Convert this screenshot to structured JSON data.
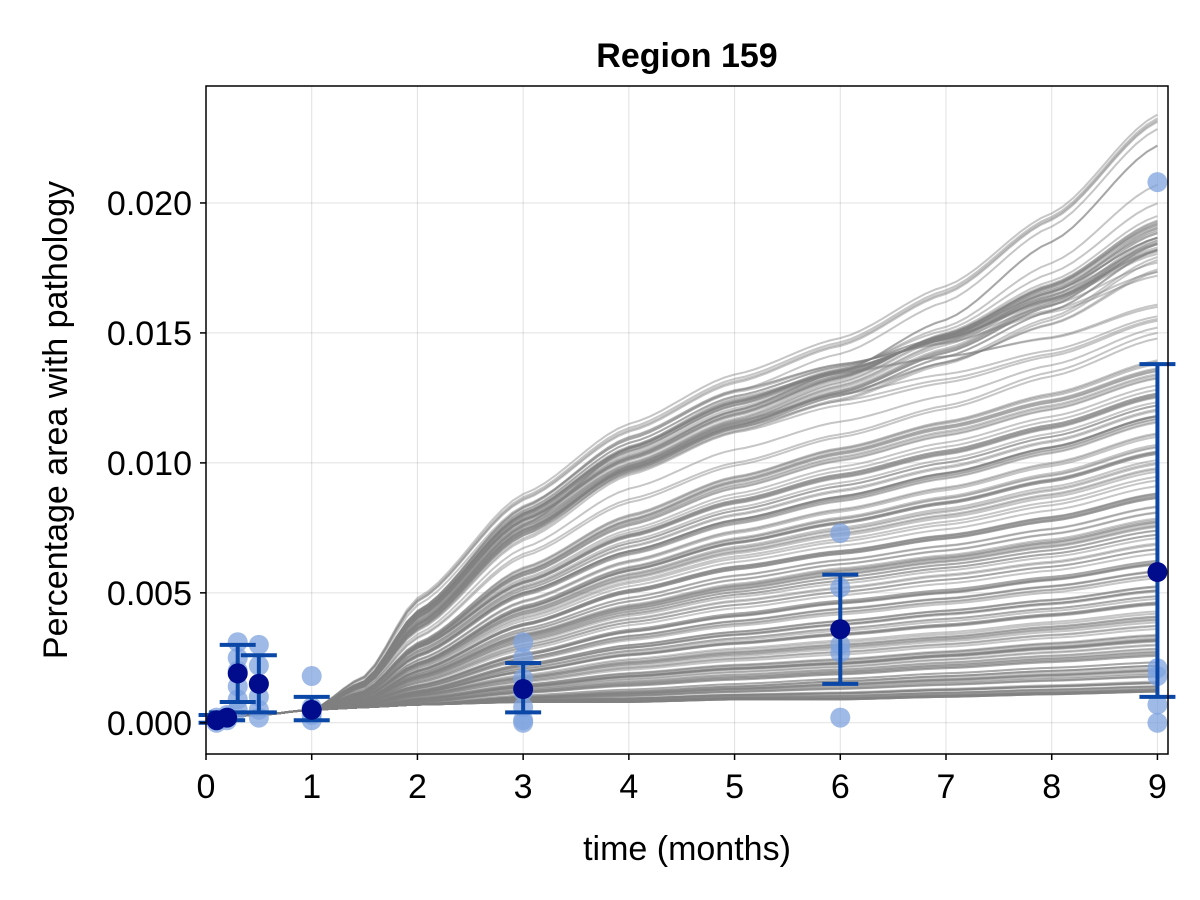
{
  "chart_data": {
    "type": "scatter",
    "title": "Region 159",
    "xlabel": "time (months)",
    "ylabel": "Percentage area with pathology",
    "xlim": [
      0,
      9.1
    ],
    "ylim": [
      -0.0012,
      0.0245
    ],
    "xticks": [
      0,
      1,
      2,
      3,
      4,
      5,
      6,
      7,
      8,
      9
    ],
    "xtick_labels": [
      "0",
      "1",
      "2",
      "3",
      "4",
      "5",
      "6",
      "7",
      "8",
      "9"
    ],
    "yticks": [
      0.0,
      0.005,
      0.01,
      0.015,
      0.02
    ],
    "ytick_labels": [
      "0.000",
      "0.005",
      "0.010",
      "0.015",
      "0.020"
    ],
    "grid": true,
    "colors": {
      "trajectories": "#808080",
      "observations": "#7fa3df",
      "means": "#000c8c",
      "error_bars": "#0a47a6"
    },
    "trajectories": {
      "description_count": 220,
      "curves": [
        {
          "t": [
            0,
            0.5,
            1,
            1.5,
            2,
            3,
            4,
            5,
            6,
            7,
            8,
            9
          ],
          "y": [
            0.0002,
            0.0003,
            0.0005,
            0.0018,
            0.0048,
            0.0088,
            0.0115,
            0.0134,
            0.0148,
            0.0168,
            0.0196,
            0.0234
          ]
        },
        {
          "t": [
            0,
            0.5,
            1,
            1.5,
            2,
            3,
            4,
            5,
            6,
            7,
            8,
            9
          ],
          "y": [
            0.0002,
            0.0003,
            0.0005,
            0.0016,
            0.0042,
            0.0078,
            0.0102,
            0.012,
            0.0135,
            0.0155,
            0.0185,
            0.0222
          ]
        },
        {
          "t": [
            0,
            0.5,
            1,
            1.5,
            2,
            3,
            4,
            5,
            6,
            7,
            8,
            9
          ],
          "y": [
            0.0002,
            0.0003,
            0.0005,
            0.0016,
            0.0043,
            0.0083,
            0.011,
            0.0128,
            0.0138,
            0.0146,
            0.0158,
            0.0172
          ]
        },
        {
          "t": [
            0,
            0.5,
            1,
            1.5,
            2,
            3,
            4,
            5,
            6,
            7,
            8,
            9
          ],
          "y": [
            0.0002,
            0.0003,
            0.0005,
            0.0015,
            0.004,
            0.0077,
            0.01,
            0.0117,
            0.0132,
            0.015,
            0.017,
            0.0195
          ]
        },
        {
          "t": [
            0,
            0.5,
            1,
            1.5,
            2,
            3,
            4,
            5,
            6,
            7,
            8,
            9
          ],
          "y": [
            0.0002,
            0.0003,
            0.0005,
            0.0014,
            0.0036,
            0.0072,
            0.0096,
            0.0112,
            0.0124,
            0.0138,
            0.0155,
            0.0178
          ]
        },
        {
          "t": [
            0,
            0.5,
            1,
            1.5,
            2,
            3,
            4,
            5,
            6,
            7,
            8,
            9
          ],
          "y": [
            0.0002,
            0.0003,
            0.0005,
            0.0015,
            0.0038,
            0.0076,
            0.0106,
            0.0125,
            0.0135,
            0.0141,
            0.0148,
            0.016
          ]
        },
        {
          "t": [
            0,
            0.5,
            1,
            1.5,
            2,
            3,
            4,
            5,
            6,
            7,
            8,
            9
          ],
          "y": [
            0.0002,
            0.0003,
            0.0005,
            0.0013,
            0.0033,
            0.0065,
            0.0086,
            0.01,
            0.0111,
            0.0122,
            0.0135,
            0.015
          ]
        },
        {
          "t": [
            0,
            0.5,
            1,
            1.5,
            2,
            3,
            4,
            5,
            6,
            7,
            8,
            9
          ],
          "y": [
            0.0002,
            0.0003,
            0.0005,
            0.0012,
            0.003,
            0.0058,
            0.0078,
            0.0093,
            0.0104,
            0.0114,
            0.0124,
            0.0136
          ]
        },
        {
          "t": [
            0,
            0.5,
            1,
            1.5,
            2,
            3,
            4,
            5,
            6,
            7,
            8,
            9
          ],
          "y": [
            0.0002,
            0.0003,
            0.0005,
            0.0012,
            0.0029,
            0.0054,
            0.0072,
            0.0085,
            0.0095,
            0.0104,
            0.0114,
            0.0126
          ]
        },
        {
          "t": [
            0,
            0.5,
            1,
            1.5,
            2,
            3,
            4,
            5,
            6,
            7,
            8,
            9
          ],
          "y": [
            0.0002,
            0.0003,
            0.0005,
            0.0011,
            0.0026,
            0.005,
            0.0066,
            0.0078,
            0.0087,
            0.0096,
            0.0106,
            0.0118
          ]
        },
        {
          "t": [
            0,
            0.5,
            1,
            1.5,
            2,
            3,
            4,
            5,
            6,
            7,
            8,
            9
          ],
          "y": [
            0.0002,
            0.0003,
            0.0005,
            0.001,
            0.0023,
            0.0045,
            0.006,
            0.0071,
            0.0079,
            0.0087,
            0.0096,
            0.0107
          ]
        },
        {
          "t": [
            0,
            0.5,
            1,
            1.5,
            2,
            3,
            4,
            5,
            6,
            7,
            8,
            9
          ],
          "y": [
            0.0002,
            0.0003,
            0.0005,
            0.001,
            0.0022,
            0.0042,
            0.0056,
            0.0066,
            0.0073,
            0.008,
            0.0088,
            0.0098
          ]
        },
        {
          "t": [
            0,
            0.5,
            1,
            1.5,
            2,
            3,
            4,
            5,
            6,
            7,
            8,
            9
          ],
          "y": [
            0.0002,
            0.0003,
            0.0005,
            0.0009,
            0.002,
            0.0038,
            0.0051,
            0.006,
            0.0066,
            0.0072,
            0.0079,
            0.0088
          ]
        },
        {
          "t": [
            0,
            0.5,
            1,
            1.5,
            2,
            3,
            4,
            5,
            6,
            7,
            8,
            9
          ],
          "y": [
            0.0002,
            0.0003,
            0.0005,
            0.0009,
            0.0018,
            0.0034,
            0.0045,
            0.0053,
            0.0059,
            0.0064,
            0.007,
            0.0078
          ]
        },
        {
          "t": [
            0,
            0.5,
            1,
            1.5,
            2,
            3,
            4,
            5,
            6,
            7,
            8,
            9
          ],
          "y": [
            0.0002,
            0.0003,
            0.0005,
            0.0008,
            0.0016,
            0.003,
            0.004,
            0.0047,
            0.0052,
            0.0057,
            0.0062,
            0.0069
          ]
        },
        {
          "t": [
            0,
            0.5,
            1,
            1.5,
            2,
            3,
            4,
            5,
            6,
            7,
            8,
            9
          ],
          "y": [
            0.0002,
            0.0003,
            0.0005,
            0.0008,
            0.0014,
            0.0026,
            0.0035,
            0.0041,
            0.0046,
            0.005,
            0.0055,
            0.0061
          ]
        },
        {
          "t": [
            0,
            0.5,
            1,
            1.5,
            2,
            3,
            4,
            5,
            6,
            7,
            8,
            9
          ],
          "y": [
            0.0002,
            0.0003,
            0.0005,
            0.0007,
            0.0012,
            0.0022,
            0.0029,
            0.0034,
            0.0038,
            0.0042,
            0.0046,
            0.0051
          ]
        },
        {
          "t": [
            0,
            0.5,
            1,
            1.5,
            2,
            3,
            4,
            5,
            6,
            7,
            8,
            9
          ],
          "y": [
            0.0002,
            0.0003,
            0.0005,
            0.0007,
            0.0011,
            0.0018,
            0.0024,
            0.0028,
            0.0031,
            0.0034,
            0.0038,
            0.0042
          ]
        },
        {
          "t": [
            0,
            0.5,
            1,
            1.5,
            2,
            3,
            4,
            5,
            6,
            7,
            8,
            9
          ],
          "y": [
            0.0002,
            0.0003,
            0.0005,
            0.0006,
            0.0009,
            0.0014,
            0.0018,
            0.0021,
            0.0023,
            0.0026,
            0.0029,
            0.0032
          ]
        },
        {
          "t": [
            0,
            0.5,
            1,
            1.5,
            2,
            3,
            4,
            5,
            6,
            7,
            8,
            9
          ],
          "y": [
            0.0002,
            0.0003,
            0.0005,
            0.0006,
            0.0007,
            0.001,
            0.0012,
            0.0014,
            0.0016,
            0.0018,
            0.002,
            0.0022
          ]
        },
        {
          "t": [
            0,
            0.5,
            1,
            1.5,
            2,
            3,
            4,
            5,
            6,
            7,
            8,
            9
          ],
          "y": [
            0.0002,
            0.0003,
            0.0005,
            0.0006,
            0.0007,
            0.0008,
            0.0008,
            0.0009,
            0.0009,
            0.001,
            0.0011,
            0.0012
          ]
        }
      ]
    },
    "observations": [
      {
        "x": 0.1,
        "y": 0.0
      },
      {
        "x": 0.1,
        "y": 0.0001
      },
      {
        "x": 0.1,
        "y": 0.0002
      },
      {
        "x": 0.1,
        "y": 0.0001
      },
      {
        "x": 0.2,
        "y": 0.0001
      },
      {
        "x": 0.2,
        "y": 0.0003
      },
      {
        "x": 0.2,
        "y": 0.0002
      },
      {
        "x": 0.3,
        "y": 0.0031
      },
      {
        "x": 0.3,
        "y": 0.0025
      },
      {
        "x": 0.3,
        "y": 0.002
      },
      {
        "x": 0.3,
        "y": 0.0014
      },
      {
        "x": 0.3,
        "y": 0.0009
      },
      {
        "x": 0.3,
        "y": 0.0005
      },
      {
        "x": 0.5,
        "y": 0.003
      },
      {
        "x": 0.5,
        "y": 0.0022
      },
      {
        "x": 0.5,
        "y": 0.0015
      },
      {
        "x": 0.5,
        "y": 0.001
      },
      {
        "x": 0.5,
        "y": 0.0005
      },
      {
        "x": 0.5,
        "y": 0.0002
      },
      {
        "x": 1.0,
        "y": 0.0018
      },
      {
        "x": 1.0,
        "y": 0.0006
      },
      {
        "x": 1.0,
        "y": 0.0003
      },
      {
        "x": 1.0,
        "y": 0.0001
      },
      {
        "x": 3.0,
        "y": 0.0031
      },
      {
        "x": 3.0,
        "y": 0.0025
      },
      {
        "x": 3.0,
        "y": 0.0017
      },
      {
        "x": 3.0,
        "y": 0.0012
      },
      {
        "x": 3.0,
        "y": 0.0006
      },
      {
        "x": 3.0,
        "y": 0.0001
      },
      {
        "x": 3.0,
        "y": 0.0
      },
      {
        "x": 6.0,
        "y": 0.0073
      },
      {
        "x": 6.0,
        "y": 0.0052
      },
      {
        "x": 6.0,
        "y": 0.003
      },
      {
        "x": 6.0,
        "y": 0.0027
      },
      {
        "x": 6.0,
        "y": 0.0002
      },
      {
        "x": 9.0,
        "y": 0.0208
      },
      {
        "x": 9.0,
        "y": 0.0021
      },
      {
        "x": 9.0,
        "y": 0.0018
      },
      {
        "x": 9.0,
        "y": 0.0007
      },
      {
        "x": 9.0,
        "y": 0.0
      }
    ],
    "means": [
      {
        "x": 0.1,
        "y": 0.0001,
        "lo": 0.0,
        "hi": 0.0003
      },
      {
        "x": 0.2,
        "y": 0.0002,
        "lo": 0.0001,
        "hi": 0.0004
      },
      {
        "x": 0.3,
        "y": 0.0019,
        "lo": 0.0008,
        "hi": 0.003
      },
      {
        "x": 0.5,
        "y": 0.0015,
        "lo": 0.0004,
        "hi": 0.0026
      },
      {
        "x": 1.0,
        "y": 0.0005,
        "lo": 0.0001,
        "hi": 0.001
      },
      {
        "x": 3.0,
        "y": 0.0013,
        "lo": 0.0004,
        "hi": 0.0023
      },
      {
        "x": 6.0,
        "y": 0.0036,
        "lo": 0.0015,
        "hi": 0.0057
      },
      {
        "x": 9.0,
        "y": 0.0058,
        "lo": 0.001,
        "hi": 0.0138
      }
    ]
  }
}
